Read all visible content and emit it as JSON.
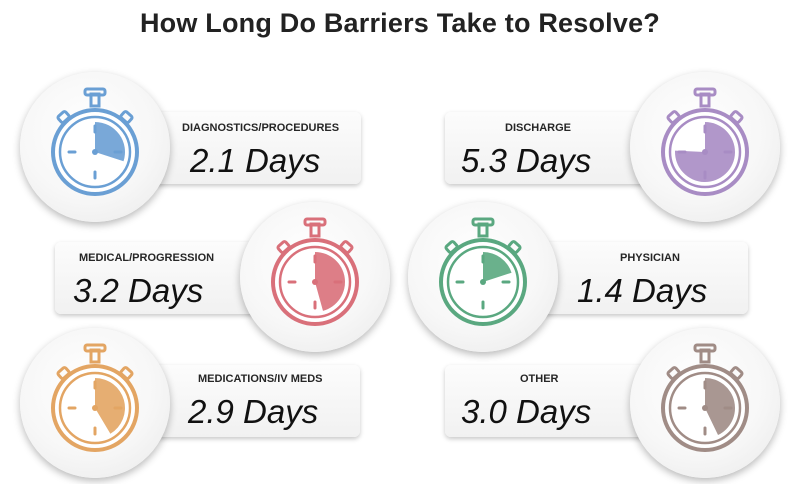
{
  "title": "How Long Do Barriers Take to Resolve?",
  "barriers": [
    {
      "label": "DIAGNOSTICS/PROCEDURES",
      "value_text": "2.1 Days",
      "days": 2.1,
      "color": "#6a9fd4"
    },
    {
      "label": "DISCHARGE",
      "value_text": "5.3 Days",
      "days": 5.3,
      "color": "#a88cc4"
    },
    {
      "label": "MEDICAL/PROGRESSION",
      "value_text": "3.2 Days",
      "days": 3.2,
      "color": "#d9707a"
    },
    {
      "label": "PHYSICIAN",
      "value_text": "1.4 Days",
      "days": 1.4,
      "color": "#5aa880"
    },
    {
      "label": "MEDICATIONS/IV MEDS",
      "value_text": "2.9 Days",
      "days": 2.9,
      "color": "#e3a563"
    },
    {
      "label": "OTHER",
      "value_text": "3.0 Days",
      "days": 3.0,
      "color": "#a08c86"
    }
  ],
  "icons": {
    "stopwatch": "stopwatch-icon"
  }
}
